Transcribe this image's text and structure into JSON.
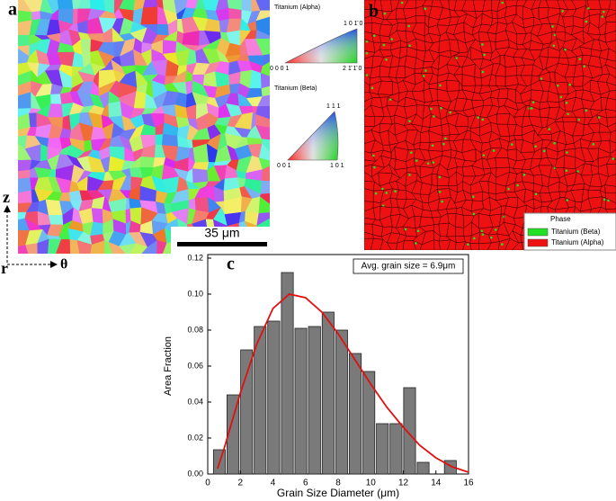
{
  "panels": {
    "a": "a",
    "b": "b",
    "c": "c"
  },
  "ipf": {
    "alpha_title": "Titanium (Alpha)",
    "alpha_top": "1 0 1̄ 0",
    "alpha_left": "0 0 0 1",
    "alpha_right": "2 1̄ 1̄ 0",
    "beta_title": "Titanium (Beta)",
    "beta_top": "1 1 1",
    "beta_left": "0 0 1",
    "beta_right": "1 0 1"
  },
  "scale_bar": "35 μm",
  "axes_symbols": {
    "z": "z",
    "r": "r",
    "theta": "θ"
  },
  "phase_legend": {
    "title": "Phase",
    "items": [
      {
        "name": "Titanium (Beta)",
        "color": "#22e022"
      },
      {
        "name": "Titanium (Alpha)",
        "color": "#ee1111"
      }
    ]
  },
  "chart_data": {
    "type": "histogram",
    "xlabel": "Grain Size Diameter (μm)",
    "ylabel": "Area Fraction",
    "annotation": "Avg. grain size = 6.9μm",
    "bins": [
      0.3,
      1.13,
      1.97,
      2.8,
      3.63,
      4.47,
      5.3,
      6.13,
      6.97,
      7.8,
      8.63,
      9.47,
      10.3,
      11.13,
      11.97,
      12.8,
      13.63,
      14.47,
      15.3
    ],
    "values": [
      0.0135,
      0.044,
      0.069,
      0.082,
      0.085,
      0.112,
      0.081,
      0.082,
      0.09,
      0.08,
      0.067,
      0.057,
      0.028,
      0.028,
      0.048,
      0.0065,
      0,
      0.0075
    ],
    "color": "#7a7a7a",
    "fit": {
      "color": "#e01010",
      "x": [
        0.6,
        1,
        2,
        3,
        4,
        5,
        6,
        7,
        8,
        9,
        10,
        11,
        12,
        13,
        14,
        15,
        16
      ],
      "y": [
        0.003,
        0.014,
        0.045,
        0.072,
        0.092,
        0.1,
        0.098,
        0.09,
        0.078,
        0.064,
        0.05,
        0.037,
        0.026,
        0.016,
        0.009,
        0.004,
        0.001
      ]
    },
    "xlim": [
      0,
      16
    ],
    "xticks": [
      0,
      2,
      4,
      6,
      8,
      10,
      12,
      14,
      16
    ],
    "ylim": [
      0,
      0.12
    ],
    "yticks": [
      {
        "value": 0,
        "label": "0.00"
      },
      {
        "value": 0.02,
        "label": "0.02"
      },
      {
        "value": 0.04,
        "label": "0.04"
      },
      {
        "value": 0.06,
        "label": "0.06"
      },
      {
        "value": 0.08,
        "label": "0.08"
      },
      {
        "value": 0.1,
        "label": "0.10"
      },
      {
        "value": 0.12,
        "label": "0.12"
      }
    ]
  }
}
